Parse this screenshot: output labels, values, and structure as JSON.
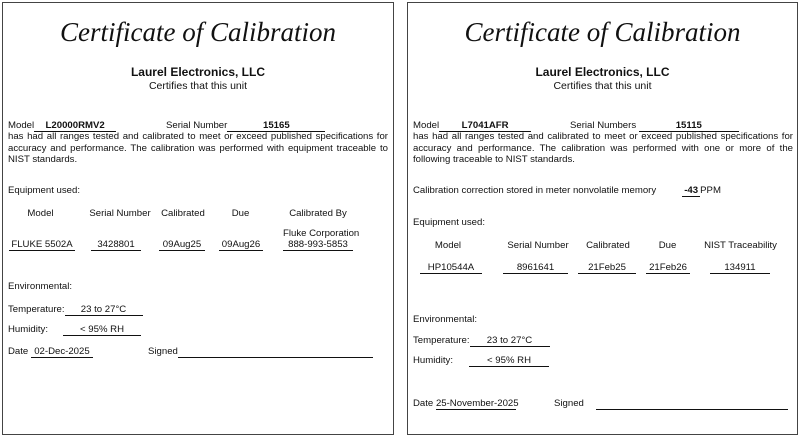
{
  "certificates": [
    {
      "title": "Certificate of Calibration",
      "company": "Laurel Electronics, LLC",
      "subtitle": "Certifies that this unit",
      "model_label": "Model",
      "model": "L20000RMV2",
      "serial_label": "Serial Number",
      "serial": "15165",
      "paragraph": "has had all ranges tested and calibrated to meet or exceed published specifications for accuracy and performance.  The calibration was performed with equipment traceable to NIST standards.",
      "equipment_label": "Equipment used:",
      "headers": [
        "Model",
        "Serial Number",
        "Calibrated",
        "Due",
        "Calibrated By"
      ],
      "row": [
        "FLUKE 5502A",
        "3428801",
        "09Aug25",
        "09Aug26",
        "888-993-5853"
      ],
      "row_extra": "Fluke Corporation",
      "environmental_label": "Environmental:",
      "temperature_label": "Temperature:",
      "temperature": "23 to 27°C",
      "humidity_label": "Humidity:",
      "humidity": "< 95% RH",
      "date_label": "Date",
      "date": "02-Dec-2025",
      "signed_label": "Signed"
    },
    {
      "title": "Certificate of Calibration",
      "company": "Laurel Electronics, LLC",
      "subtitle": "Certifies that this unit",
      "model_label": "Model",
      "model": "L7041AFR",
      "serial_label": "Serial Numbers",
      "serial": "15115",
      "paragraph": "has had all ranges tested and calibrated to meet or exceed published specifications for accuracy and performance.  The calibration was performed with one or more of the following traceable to NIST standards.",
      "correction_label": "Calibration correction stored in meter nonvolatile memory",
      "correction": "-43",
      "correction_unit": "PPM",
      "equipment_label": "Equipment used:",
      "headers": [
        "Model",
        "Serial Number",
        "Calibrated",
        "Due",
        "NIST Traceability"
      ],
      "row": [
        "HP10544A",
        "8961641",
        "21Feb25",
        "21Feb26",
        "134911"
      ],
      "environmental_label": "Environmental:",
      "temperature_label": "Temperature:",
      "temperature": "23 to 27°C",
      "humidity_label": "Humidity:",
      "humidity": "< 95% RH",
      "date_label": "Date",
      "date": "25-November-2025",
      "signed_label": "Signed"
    }
  ]
}
